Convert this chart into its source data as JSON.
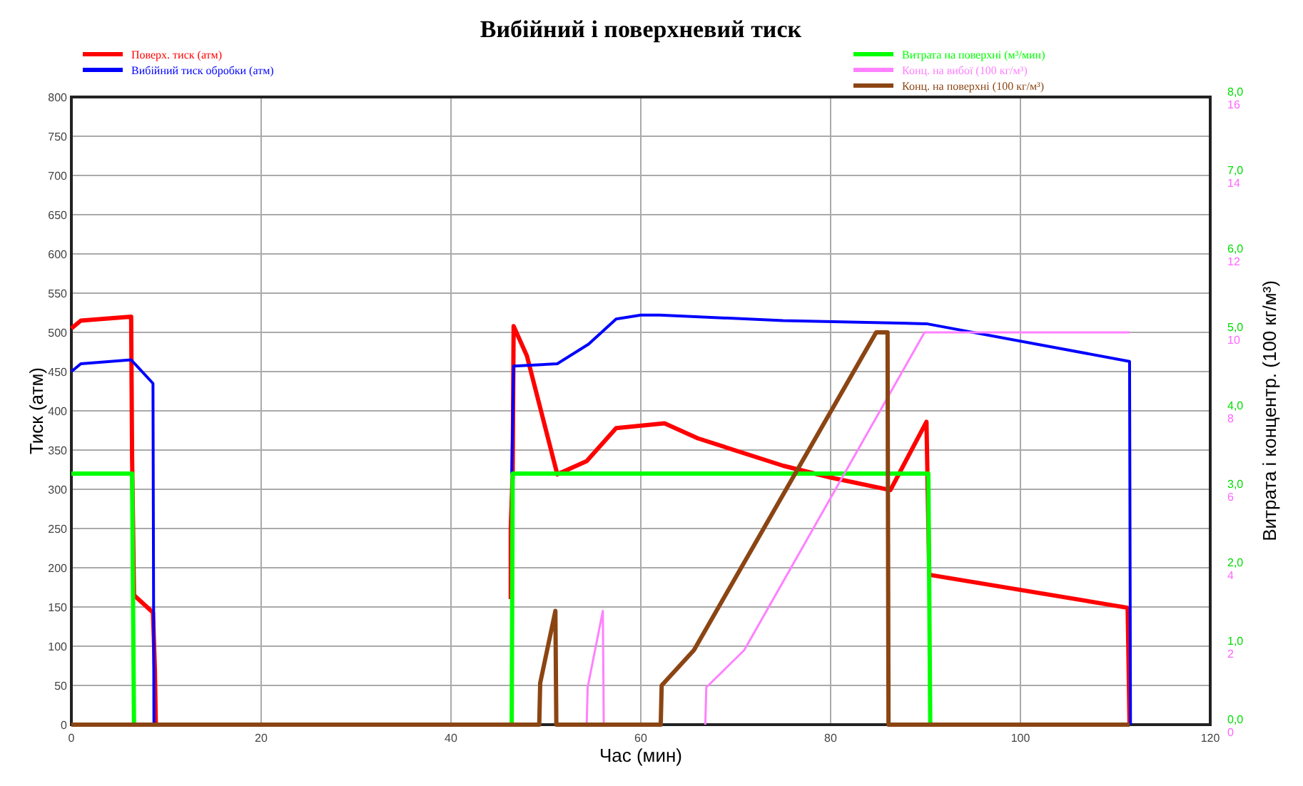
{
  "chart_data": {
    "type": "line",
    "title": "Вибійний і поверхневий тиск",
    "xlabel": "Час (мин)",
    "ylabel": "Тиск (атм)",
    "y2label": "Витрата і концентр. (100 кг/м³)",
    "xlim": [
      0,
      120
    ],
    "xticks": [
      0,
      20,
      40,
      60,
      80,
      100,
      120
    ],
    "ylim": [
      0,
      800
    ],
    "yticks": [
      0,
      50,
      100,
      150,
      200,
      250,
      300,
      350,
      400,
      450,
      500,
      550,
      600,
      650,
      700,
      750,
      800
    ],
    "y2lim": [
      0,
      8
    ],
    "y2ticks": [
      {
        "value": 0,
        "label": "0,0"
      },
      {
        "value": 1,
        "label": "1,0"
      },
      {
        "value": 2,
        "label": "2,0"
      },
      {
        "value": 3,
        "label": "3,0"
      },
      {
        "value": 4,
        "label": "4,0"
      },
      {
        "value": 5,
        "label": "5,0"
      },
      {
        "value": 6,
        "label": "6,0"
      },
      {
        "value": 7,
        "label": "7,0"
      },
      {
        "value": 8,
        "label": "8,0"
      }
    ],
    "y3lim": [
      0,
      16
    ],
    "y3ticks": [
      0,
      2,
      4,
      6,
      8,
      10,
      12,
      14,
      16
    ],
    "grid": true,
    "legend": "top",
    "line_style": "solid",
    "marker": "none",
    "series": [
      {
        "name": "Поверх. тиск (атм)",
        "color": "#ff0000",
        "x": [
          0,
          1,
          6.3,
          6.4,
          6.6,
          8.6,
          8.8,
          8.9,
          20,
          46.3,
          46.3,
          46.5,
          46.6,
          48,
          51.2,
          54.3,
          57.4,
          62.5,
          66,
          75,
          80,
          86.3,
          90.1,
          90.4,
          111.3,
          111.5
        ],
        "values": [
          505,
          515,
          520,
          340,
          165,
          143,
          70,
          0,
          null,
          160,
          250,
          320,
          508,
          470,
          319,
          336,
          378,
          384,
          365,
          330,
          315,
          299,
          386,
          191,
          149,
          0
        ]
      },
      {
        "name": "Вибійний тиск обробки (атм)",
        "color": "#0000ff",
        "x": [
          0,
          1,
          6.3,
          8.6,
          8.7,
          20,
          46.4,
          46.6,
          51.2,
          54.5,
          57.4,
          60,
          62,
          75,
          90.1,
          111.5,
          111.6
        ],
        "values": [
          450,
          460,
          465,
          435,
          0,
          null,
          320,
          457,
          460,
          485,
          517,
          522,
          522,
          515,
          511,
          463,
          0
        ]
      },
      {
        "name": "Витрата на поверхні (м³/мин)",
        "color": "#00ff00",
        "axis": "y2",
        "x": [
          0,
          6.4,
          6.5,
          6.6,
          20,
          46.4,
          46.5,
          90.3,
          90.5
        ],
        "values": [
          3.2,
          3.2,
          1.6,
          0,
          null,
          0,
          3.2,
          3.2,
          0
        ]
      },
      {
        "name": "Конц. на вибої (100 кг/м³)",
        "color": "#ff80ff",
        "axis": "y3",
        "x": [
          54.3,
          54.4,
          56,
          56.1,
          60,
          66.8,
          66.9,
          70.9,
          89.9,
          111.5
        ],
        "values": [
          0,
          0.95,
          2.9,
          0,
          null,
          0,
          0.95,
          1.9,
          10,
          10
        ]
      },
      {
        "name": "Конц. на поверхні (100 кг/м³)",
        "color": "#8b4513",
        "axis": "y3",
        "x": [
          0,
          49.3,
          49.4,
          51,
          51.1,
          62.1,
          62.2,
          65.6,
          84.8,
          86,
          86.1,
          111.5
        ],
        "values": [
          0,
          0,
          1.06,
          2.9,
          0,
          0,
          1,
          1.9,
          10,
          10,
          0,
          0
        ]
      }
    ]
  }
}
